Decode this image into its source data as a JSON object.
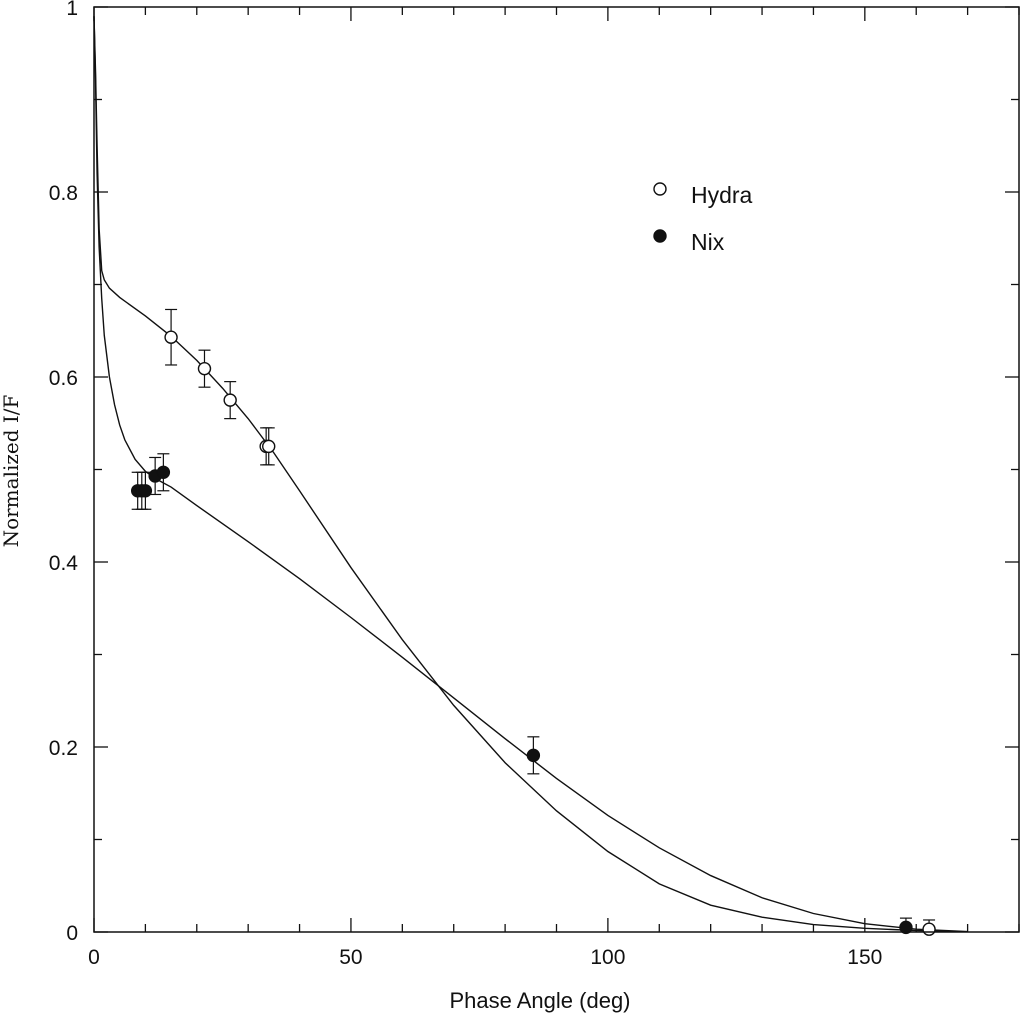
{
  "chart_data": {
    "type": "scatter",
    "title": "",
    "xlabel": "Phase Angle (deg)",
    "ylabel": "Normalized I/F",
    "xlim": [
      0,
      180
    ],
    "ylim": [
      0,
      1
    ],
    "xticks": [
      0,
      50,
      100,
      150
    ],
    "xtick_labels": [
      "0",
      "50",
      "100",
      "150"
    ],
    "yticks": [
      0,
      0.2,
      0.4,
      0.6,
      0.8,
      1
    ],
    "ytick_labels": [
      "0",
      "0.2",
      "0.4",
      "0.6",
      "0.8",
      "1"
    ],
    "x_minor_step": 10,
    "y_minor_step": 0.1,
    "grid": false,
    "legend_position": "upper-right",
    "series": [
      {
        "name": "Hydra",
        "marker": "open-circle",
        "points": [
          {
            "x": 15,
            "y": 0.643,
            "err": 0.03
          },
          {
            "x": 21.5,
            "y": 0.609,
            "err": 0.02
          },
          {
            "x": 26.5,
            "y": 0.575,
            "err": 0.02
          },
          {
            "x": 33.5,
            "y": 0.525,
            "err": 0.02
          },
          {
            "x": 34,
            "y": 0.525,
            "err": 0.02
          },
          {
            "x": 162.5,
            "y": 0.003,
            "err": 0.01
          }
        ],
        "model_curve": [
          [
            0,
            0.99
          ],
          [
            0.3,
            0.93
          ],
          [
            0.6,
            0.85
          ],
          [
            1,
            0.76
          ],
          [
            1.5,
            0.715
          ],
          [
            2,
            0.705
          ],
          [
            3,
            0.696
          ],
          [
            5,
            0.686
          ],
          [
            10,
            0.666
          ],
          [
            15,
            0.644
          ],
          [
            20,
            0.618
          ],
          [
            25,
            0.588
          ],
          [
            30,
            0.555
          ],
          [
            35,
            0.518
          ],
          [
            40,
            0.477
          ],
          [
            50,
            0.394
          ],
          [
            60,
            0.316
          ],
          [
            70,
            0.245
          ],
          [
            80,
            0.183
          ],
          [
            90,
            0.131
          ],
          [
            100,
            0.087
          ],
          [
            110,
            0.052
          ],
          [
            120,
            0.029
          ],
          [
            130,
            0.016
          ],
          [
            140,
            0.008
          ],
          [
            150,
            0.004
          ],
          [
            160,
            0.0015
          ],
          [
            170,
            0.0002
          ]
        ]
      },
      {
        "name": "Nix",
        "marker": "filled-circle",
        "points": [
          {
            "x": 8.5,
            "y": 0.477,
            "err": 0.02
          },
          {
            "x": 9.3,
            "y": 0.477,
            "err": 0.02
          },
          {
            "x": 10,
            "y": 0.477,
            "err": 0.02
          },
          {
            "x": 11.9,
            "y": 0.493,
            "err": 0.02
          },
          {
            "x": 13.5,
            "y": 0.497,
            "err": 0.02
          },
          {
            "x": 85.5,
            "y": 0.191,
            "err": 0.02
          },
          {
            "x": 158,
            "y": 0.005,
            "err": 0.01
          }
        ],
        "model_curve": [
          [
            0,
            0.99
          ],
          [
            0.3,
            0.92
          ],
          [
            0.6,
            0.82
          ],
          [
            1,
            0.74
          ],
          [
            1.5,
            0.685
          ],
          [
            2,
            0.645
          ],
          [
            3,
            0.6
          ],
          [
            4,
            0.57
          ],
          [
            5,
            0.548
          ],
          [
            6,
            0.532
          ],
          [
            8,
            0.511
          ],
          [
            10,
            0.498
          ],
          [
            12,
            0.49
          ],
          [
            15,
            0.481
          ],
          [
            20,
            0.461
          ],
          [
            30,
            0.422
          ],
          [
            40,
            0.382
          ],
          [
            50,
            0.34
          ],
          [
            60,
            0.297
          ],
          [
            70,
            0.253
          ],
          [
            80,
            0.209
          ],
          [
            90,
            0.166
          ],
          [
            100,
            0.126
          ],
          [
            110,
            0.091
          ],
          [
            120,
            0.061
          ],
          [
            130,
            0.037
          ],
          [
            140,
            0.02
          ],
          [
            150,
            0.009
          ],
          [
            160,
            0.003
          ],
          [
            170,
            0.0005
          ]
        ]
      }
    ]
  }
}
